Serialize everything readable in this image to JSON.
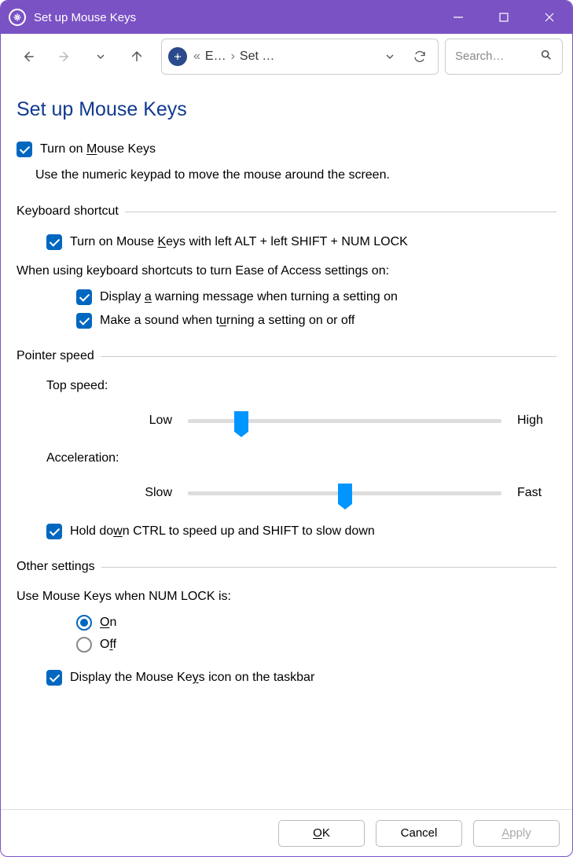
{
  "window": {
    "title": "Set up Mouse Keys"
  },
  "toolbar": {
    "breadcrumb1": "E…",
    "breadcrumb2": "Set …",
    "search_placeholder": "Search…"
  },
  "page": {
    "heading": "Set up Mouse Keys"
  },
  "turn_on": {
    "checked": true,
    "label_pre": "Turn on ",
    "label_ul": "M",
    "label_post": "ouse Keys",
    "description": "Use the numeric keypad to move the mouse around the screen."
  },
  "groups": {
    "keyboard_shortcut": {
      "legend": "Keyboard shortcut",
      "enable": {
        "checked": true,
        "label_pre": "Turn on Mouse ",
        "label_ul": "K",
        "label_post": "eys with left ALT + left SHIFT + NUM LOCK"
      },
      "when_text": "When using keyboard shortcuts to turn Ease of Access settings on:",
      "warning": {
        "checked": true,
        "label_pre": "Display ",
        "label_ul": "a",
        "label_post": " warning message when turning a setting on"
      },
      "sound": {
        "checked": true,
        "label_pre": "Make a sound when t",
        "label_ul": "u",
        "label_post": "rning a setting on or off"
      }
    },
    "pointer_speed": {
      "legend": "Pointer speed",
      "top_speed": {
        "label": "Top speed:",
        "low": "Low",
        "high": "High",
        "value_pct": 17
      },
      "acceleration": {
        "label": "Acceleration:",
        "low": "Slow",
        "high": "Fast",
        "value_pct": 50
      },
      "ctrl_shift": {
        "checked": true,
        "label_pre": "Hold do",
        "label_ul": "w",
        "label_post": "n CTRL to speed up and SHIFT to slow down"
      }
    },
    "other": {
      "legend": "Other settings",
      "numlock_label": "Use Mouse Keys when NUM LOCK is:",
      "on": {
        "selected": true,
        "label_ul": "O",
        "label_post": "n"
      },
      "off": {
        "selected": false,
        "label_pre": "O",
        "label_ul": "f",
        "label_post": "f"
      },
      "taskbar": {
        "checked": true,
        "label_pre": "Display the Mouse Ke",
        "label_ul": "y",
        "label_post": "s icon on the taskbar"
      }
    }
  },
  "footer": {
    "ok_ul": "O",
    "ok_post": "K",
    "cancel": "Cancel",
    "apply_ul": "A",
    "apply_post": "pply"
  },
  "colors": {
    "titlebar": "#7a52c4",
    "accent": "#0067c0",
    "heading": "#103a8f",
    "slider_thumb": "#0095ff"
  }
}
